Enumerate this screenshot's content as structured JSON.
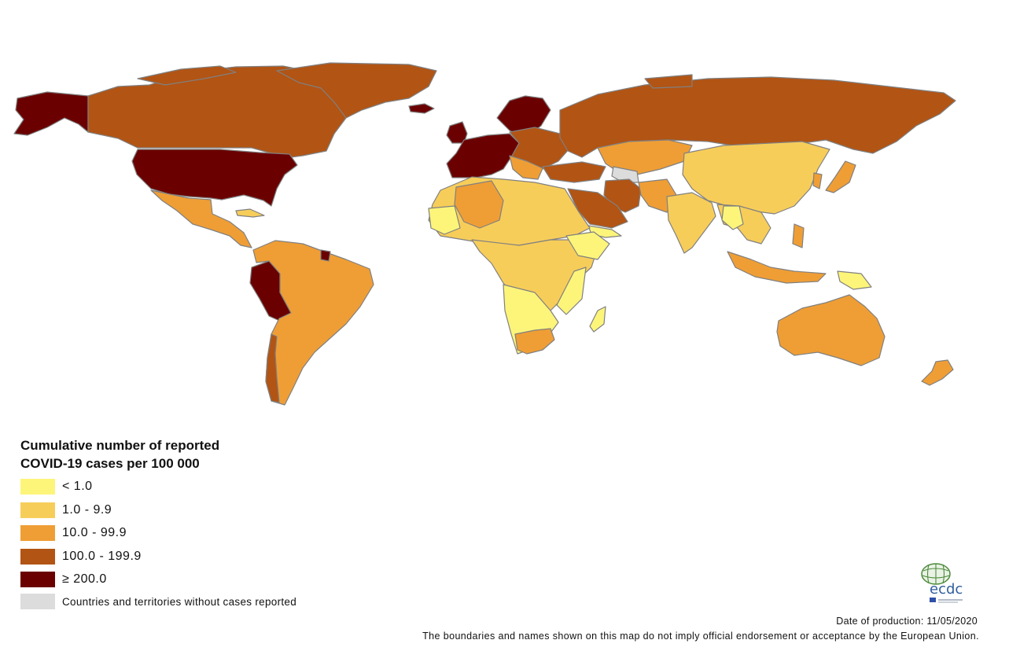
{
  "legend": {
    "title_line1": "Cumulative number of reported",
    "title_line2": "COVID-19 cases per 100 000",
    "items": [
      {
        "label": "< 1.0",
        "color": "#fdf57a"
      },
      {
        "label": "1.0 - 9.9",
        "color": "#f7cd5a"
      },
      {
        "label": "10.0 - 99.9",
        "color": "#ef9e35"
      },
      {
        "label": "100.0 - 199.9",
        "color": "#b25414"
      },
      {
        "label": "≥ 200.0",
        "color": "#6b0000"
      },
      {
        "label": "Countries and territories without cases reported",
        "color": "#dcdcdc"
      }
    ]
  },
  "footer": {
    "date": "Date of production: 11/05/2020",
    "disclaimer": "The boundaries and names shown on this map do not imply official endorsement or acceptance by the European Union."
  },
  "logo": {
    "text": "ecdc",
    "icon": "globe-icon"
  },
  "colors": {
    "lt1": "#fdf57a",
    "c1_10": "#f7cd5a",
    "c10_100": "#ef9e35",
    "c100_200": "#b25414",
    "c200": "#6b0000",
    "nocases": "#dcdcdc",
    "border": "#888888"
  }
}
